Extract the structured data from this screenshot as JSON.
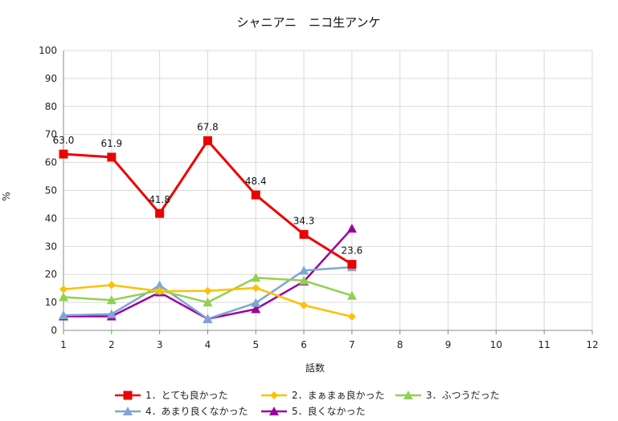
{
  "chart_data": {
    "type": "line",
    "title": "シャニアニ　ニコ生アンケ",
    "xlabel": "話数",
    "ylabel": "%",
    "x": [
      1,
      2,
      3,
      4,
      5,
      6,
      7
    ],
    "xlim": [
      1,
      12
    ],
    "xticks": [
      1,
      2,
      3,
      4,
      5,
      6,
      7,
      8,
      9,
      10,
      11,
      12
    ],
    "ylim": [
      0,
      100
    ],
    "yticks": [
      0,
      10,
      20,
      30,
      40,
      50,
      60,
      70,
      80,
      90,
      100
    ],
    "grid": true,
    "legend_position": "bottom",
    "series": [
      {
        "name": "1．とても良かった",
        "color": "#ee0000",
        "marker": "square",
        "values": [
          63.0,
          61.9,
          41.8,
          67.8,
          48.4,
          34.3,
          23.6
        ],
        "data_labels": [
          "63.0",
          "61.9",
          "41.8",
          "67.8",
          "48.4",
          "34.3",
          "23.6"
        ]
      },
      {
        "name": "2．まぁまぁ良かった",
        "color": "#ffc000",
        "marker": "diamond",
        "values": [
          14.7,
          16.2,
          14.0,
          14.1,
          15.2,
          9.0,
          4.9
        ]
      },
      {
        "name": "3．ふつうだった",
        "color": "#92d050",
        "marker": "triangle",
        "values": [
          11.9,
          10.8,
          14.3,
          10.0,
          18.8,
          17.8,
          12.4
        ]
      },
      {
        "name": "4．あまり良くなかった",
        "color": "#7ea6d3",
        "marker": "triangle",
        "values": [
          5.4,
          5.8,
          16.1,
          4.1,
          9.8,
          21.4,
          22.6
        ]
      },
      {
        "name": "5．良くなかった",
        "color": "#9b00a0",
        "marker": "triangle",
        "values": [
          5.0,
          5.0,
          13.6,
          4.1,
          7.6,
          17.5,
          36.4
        ]
      }
    ]
  }
}
